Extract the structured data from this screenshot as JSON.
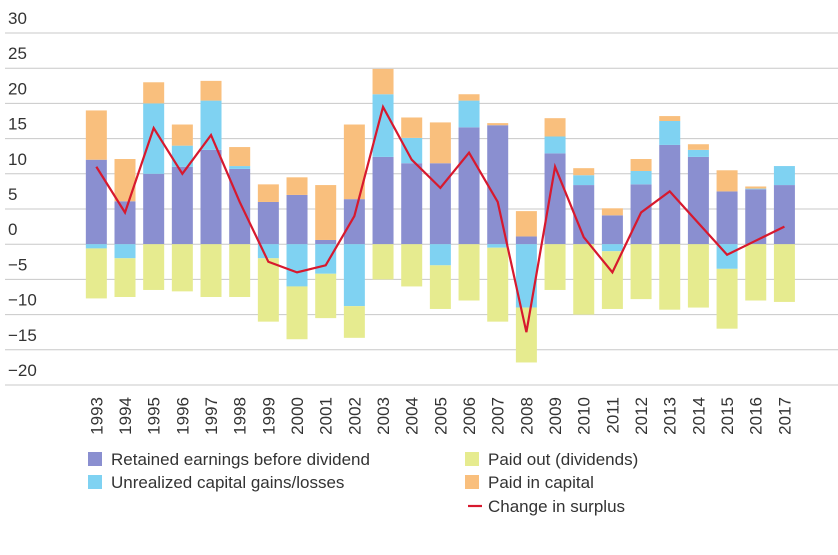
{
  "chart_data": {
    "type": "bar",
    "categories": [
      "1993",
      "1994",
      "1995",
      "1996",
      "1997",
      "1998",
      "1999",
      "2000",
      "2001",
      "2002",
      "2003",
      "2004",
      "2005",
      "2006",
      "2007",
      "2008",
      "2009",
      "2010",
      "2011",
      "2012",
      "2013",
      "2014",
      "2015",
      "2016",
      "2017"
    ],
    "series": [
      {
        "name": "Retained earnings before dividend",
        "color": "#8a8fd0",
        "values": [
          12,
          6.1,
          10,
          11,
          13.4,
          10.7,
          6,
          7,
          0.6,
          6.4,
          12.4,
          11.5,
          11.5,
          16.6,
          16.9,
          1.1,
          12.9,
          8.4,
          4.1,
          8.5,
          14.1,
          12.4,
          7.5,
          7.8,
          8.4
        ]
      },
      {
        "name": "Unrealized capital gains/losses",
        "color": "#7fd2f2",
        "values": [
          -0.6,
          -2,
          10,
          3,
          7,
          0.4,
          -2,
          -6,
          -4.2,
          -8.8,
          8.9,
          3.6,
          -3,
          3.8,
          -0.5,
          -9,
          2.4,
          1.4,
          -1,
          1.9,
          3.4,
          1,
          -3.5,
          0.1,
          2.7
        ]
      },
      {
        "name": "Paid out (dividends)",
        "color": "#e6eb8f",
        "values": [
          -7.1,
          -5.5,
          -6.5,
          -6.7,
          -7.5,
          -7.5,
          -9,
          -7.5,
          -6.3,
          -4.5,
          -5,
          -6,
          -6.2,
          -8,
          -10.5,
          -7.8,
          -6.5,
          -10,
          -8.2,
          -7.8,
          -9.3,
          -9,
          -8.5,
          -8,
          -8.2
        ]
      },
      {
        "name": "Paid in capital",
        "color": "#f9bf7d",
        "values": [
          7,
          6,
          3,
          3,
          2.8,
          2.7,
          2.5,
          2.5,
          7.8,
          10.6,
          3.6,
          2.9,
          5.8,
          0.9,
          0.3,
          3.6,
          2.6,
          1,
          1,
          1.7,
          0.7,
          0.8,
          3,
          0.3,
          0
        ]
      },
      {
        "name": "Change in surplus",
        "color": "#d7192e",
        "type": "line",
        "values": [
          11,
          4.5,
          16.5,
          10,
          15.5,
          6,
          -2.5,
          -4,
          -3,
          4,
          19.5,
          12,
          8,
          13,
          6,
          -12.5,
          11,
          1,
          -4,
          4.5,
          7.5,
          3,
          -1.5,
          0.5,
          2.5
        ]
      }
    ],
    "ylim": [
      -20,
      30
    ],
    "yticks": [
      {
        "value": -20,
        "label": "−20"
      },
      {
        "value": -15,
        "label": "−15"
      },
      {
        "value": -10,
        "label": "−10"
      },
      {
        "value": -5,
        "label": "−5"
      },
      0,
      5,
      10,
      15,
      20,
      25,
      30
    ],
    "grid": true
  }
}
